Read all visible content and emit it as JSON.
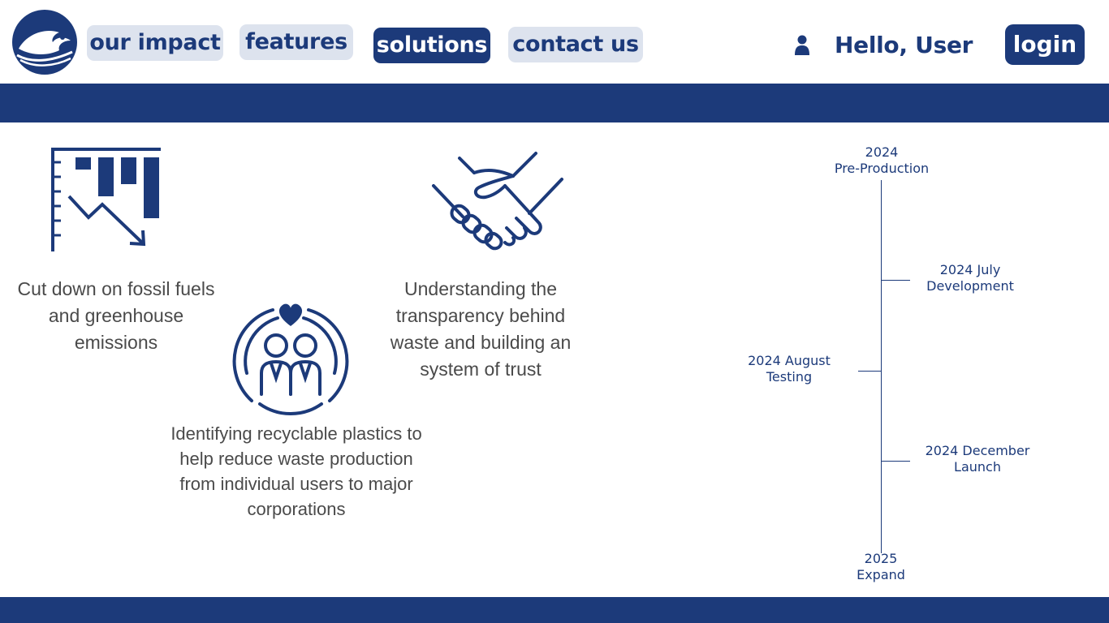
{
  "nav": {
    "items": [
      {
        "label": "our impact"
      },
      {
        "label": "features"
      },
      {
        "label": "solutions"
      },
      {
        "label": "contact us"
      }
    ],
    "active": "solutions"
  },
  "user": {
    "greeting": "Hello, User",
    "login_label": "login"
  },
  "features": [
    {
      "text": "Cut down on fossil fuels and greenhouse emissions",
      "icon": "declining-chart-icon"
    },
    {
      "text": "Understanding the transparency behind waste and building an system of trust",
      "icon": "handshake-icon"
    },
    {
      "text": "Identifying recyclable plastics to help reduce waste production from individual users to major corporations",
      "icon": "community-heart-icon"
    }
  ],
  "timeline": [
    {
      "year": "2024",
      "phase": "Pre-Production"
    },
    {
      "year": "2024 July",
      "phase": "Development"
    },
    {
      "year": "2024 August",
      "phase": "Testing"
    },
    {
      "year": "2024 December",
      "phase": "Launch"
    },
    {
      "year": "2025",
      "phase": "Expand"
    }
  ],
  "colors": {
    "brand": "#1c3a7a",
    "nav_bg": "#dde3ee",
    "body_text": "#4a4a4a"
  }
}
